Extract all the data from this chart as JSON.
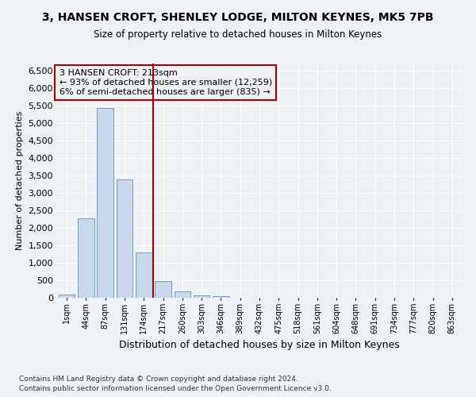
{
  "title": "3, HANSEN CROFT, SHENLEY LODGE, MILTON KEYNES, MK5 7PB",
  "subtitle": "Size of property relative to detached houses in Milton Keynes",
  "xlabel": "Distribution of detached houses by size in Milton Keynes",
  "ylabel": "Number of detached properties",
  "bar_color": "#c8d8ec",
  "bar_edge_color": "#6090b8",
  "vline_color": "#aa0000",
  "annotation_text_line1": "3 HANSEN CROFT: 213sqm",
  "annotation_text_line2": "← 93% of detached houses are smaller (12,259)",
  "annotation_text_line3": "6% of semi-detached houses are larger (835) →",
  "categories": [
    "1sqm",
    "44sqm",
    "87sqm",
    "131sqm",
    "174sqm",
    "217sqm",
    "260sqm",
    "303sqm",
    "346sqm",
    "389sqm",
    "432sqm",
    "475sqm",
    "518sqm",
    "561sqm",
    "604sqm",
    "648sqm",
    "691sqm",
    "734sqm",
    "777sqm",
    "820sqm",
    "863sqm"
  ],
  "values": [
    95,
    2280,
    5420,
    3380,
    1300,
    475,
    175,
    75,
    50,
    5,
    2,
    1,
    0,
    0,
    0,
    0,
    0,
    0,
    0,
    0,
    0
  ],
  "ylim": [
    0,
    6700
  ],
  "yticks": [
    0,
    500,
    1000,
    1500,
    2000,
    2500,
    3000,
    3500,
    4000,
    4500,
    5000,
    5500,
    6000,
    6500
  ],
  "footnote1": "Contains HM Land Registry data © Crown copyright and database right 2024.",
  "footnote2": "Contains public sector information licensed under the Open Government Licence v3.0.",
  "background_color": "#eef2f7",
  "grid_color": "#ffffff"
}
